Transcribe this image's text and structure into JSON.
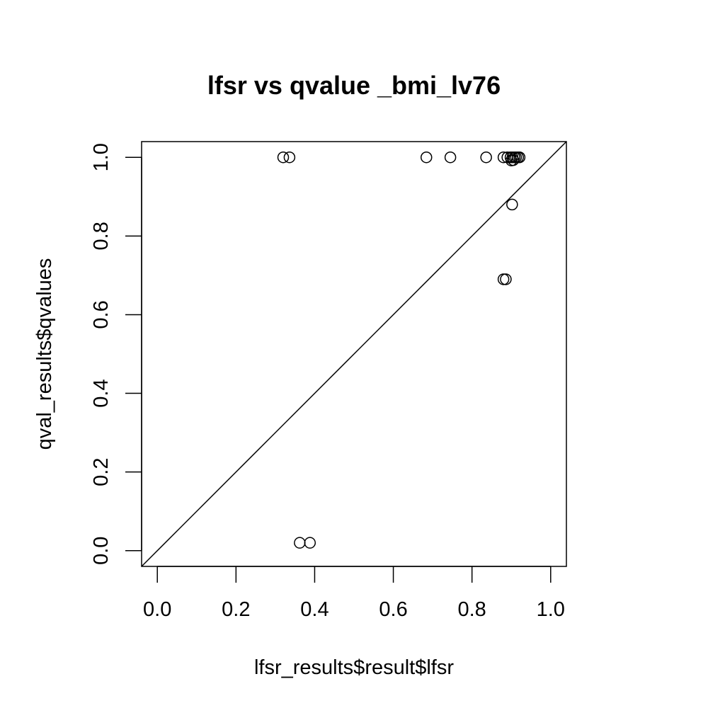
{
  "chart_data": {
    "type": "scatter",
    "title": "lfsr vs qvalue  _bmi_lv76",
    "xlabel": "lfsr_results$result$lfsr",
    "ylabel": "qval_results$qvalues",
    "xlim": [
      -0.04,
      1.04
    ],
    "ylim": [
      -0.04,
      1.04
    ],
    "xticks": [
      "0.0",
      "0.2",
      "0.4",
      "0.6",
      "0.8",
      "1.0"
    ],
    "yticks": [
      "0.0",
      "0.2",
      "0.4",
      "0.6",
      "0.8",
      "1.0"
    ],
    "reference_line": "y = x",
    "grid": false,
    "legend": "none",
    "points": [
      {
        "x": 0.32,
        "y": 1.0
      },
      {
        "x": 0.336,
        "y": 1.0
      },
      {
        "x": 0.684,
        "y": 1.0
      },
      {
        "x": 0.745,
        "y": 1.0
      },
      {
        "x": 0.836,
        "y": 1.0
      },
      {
        "x": 0.88,
        "y": 1.0
      },
      {
        "x": 0.89,
        "y": 1.0
      },
      {
        "x": 0.898,
        "y": 1.0
      },
      {
        "x": 0.903,
        "y": 1.0
      },
      {
        "x": 0.908,
        "y": 1.0
      },
      {
        "x": 0.912,
        "y": 1.0
      },
      {
        "x": 0.917,
        "y": 1.0
      },
      {
        "x": 0.921,
        "y": 1.0
      },
      {
        "x": 0.9,
        "y": 0.992
      },
      {
        "x": 0.905,
        "y": 0.993
      },
      {
        "x": 0.902,
        "y": 0.88
      },
      {
        "x": 0.88,
        "y": 0.69
      },
      {
        "x": 0.886,
        "y": 0.69
      },
      {
        "x": 0.362,
        "y": 0.02
      },
      {
        "x": 0.388,
        "y": 0.02
      }
    ]
  }
}
